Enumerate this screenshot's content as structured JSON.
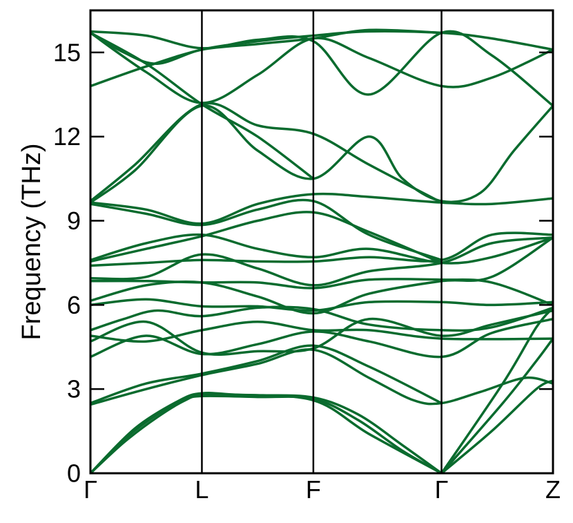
{
  "chart_data": {
    "type": "line",
    "title": "",
    "xlabel": "",
    "ylabel": "Frequency (THz)",
    "ylim": [
      0,
      16.5
    ],
    "yticks": [
      0,
      3,
      6,
      9,
      12,
      15
    ],
    "x_points": [
      {
        "label": "Γ",
        "pos": 0
      },
      {
        "label": "L",
        "pos": 1
      },
      {
        "label": "F",
        "pos": 2
      },
      {
        "label": "Γ",
        "pos": 3.15
      },
      {
        "label": "Z",
        "pos": 4.15
      }
    ],
    "grid": false,
    "line_color": "#0a6b2e",
    "series": [
      {
        "points": [
          [
            0,
            0
          ],
          [
            0.3,
            1.1
          ],
          [
            0.6,
            2.0
          ],
          [
            0.85,
            2.6
          ],
          [
            1,
            2.75
          ],
          [
            1.5,
            2.72
          ],
          [
            2,
            2.65
          ],
          [
            2.4,
            1.9
          ],
          [
            2.8,
            0.8
          ],
          [
            3.15,
            0
          ]
        ]
      },
      {
        "points": [
          [
            0,
            0
          ],
          [
            0.3,
            1.2
          ],
          [
            0.6,
            2.1
          ],
          [
            0.85,
            2.65
          ],
          [
            1,
            2.8
          ],
          [
            1.5,
            2.78
          ],
          [
            2,
            2.7
          ],
          [
            2.4,
            2.1
          ],
          [
            2.8,
            1.0
          ],
          [
            3.15,
            0
          ]
        ]
      },
      {
        "points": [
          [
            0,
            0
          ],
          [
            0.4,
            1.6
          ],
          [
            0.8,
            2.6
          ],
          [
            1,
            2.85
          ],
          [
            1.3,
            2.8
          ],
          [
            2,
            2.6
          ],
          [
            2.5,
            1.4
          ],
          [
            3.15,
            0
          ]
        ]
      },
      {
        "points": [
          [
            0,
            2.45
          ],
          [
            0.5,
            3.0
          ],
          [
            1,
            3.5
          ],
          [
            1.5,
            3.9
          ],
          [
            2,
            4.4
          ],
          [
            2.5,
            3.4
          ],
          [
            2.9,
            2.6
          ],
          [
            3.15,
            2.5
          ],
          [
            3.5,
            2.9
          ],
          [
            3.9,
            3.4
          ],
          [
            4.15,
            3.2
          ]
        ]
      },
      {
        "points": [
          [
            0,
            2.5
          ],
          [
            0.5,
            3.2
          ],
          [
            1,
            3.55
          ],
          [
            1.5,
            4.0
          ],
          [
            2,
            4.55
          ],
          [
            2.5,
            3.8
          ],
          [
            3.15,
            2.5
          ]
        ]
      },
      {
        "points": [
          [
            3.15,
            0
          ],
          [
            3.6,
            1.5
          ],
          [
            4.0,
            3.0
          ],
          [
            4.15,
            3.3
          ]
        ]
      },
      {
        "points": [
          [
            3.15,
            0
          ],
          [
            3.7,
            2.5
          ],
          [
            4.0,
            4.0
          ],
          [
            4.15,
            4.8
          ]
        ]
      },
      {
        "points": [
          [
            3.15,
            0
          ],
          [
            3.7,
            3.2
          ],
          [
            4.0,
            5.2
          ],
          [
            4.15,
            5.9
          ]
        ]
      },
      {
        "points": [
          [
            0,
            4.15
          ],
          [
            0.5,
            4.9
          ],
          [
            1,
            4.25
          ],
          [
            1.5,
            4.6
          ],
          [
            2,
            5.05
          ],
          [
            2.5,
            4.7
          ],
          [
            3.15,
            4.15
          ],
          [
            3.6,
            5.0
          ],
          [
            4.15,
            5.5
          ]
        ]
      },
      {
        "points": [
          [
            0,
            4.7
          ],
          [
            0.5,
            5.4
          ],
          [
            1,
            4.3
          ],
          [
            1.5,
            4.35
          ],
          [
            2,
            4.45
          ],
          [
            2.5,
            5.5
          ],
          [
            3.15,
            4.9
          ],
          [
            3.6,
            5.3
          ],
          [
            4.15,
            5.8
          ]
        ]
      },
      {
        "points": [
          [
            0,
            4.9
          ],
          [
            0.5,
            4.7
          ],
          [
            1,
            5.1
          ],
          [
            1.5,
            5.4
          ],
          [
            2,
            5.1
          ],
          [
            2.5,
            5.1
          ],
          [
            3.15,
            4.8
          ],
          [
            4.15,
            4.8
          ]
        ]
      },
      {
        "points": [
          [
            0,
            5.1
          ],
          [
            0.3,
            5.5
          ],
          [
            0.6,
            5.8
          ],
          [
            1,
            5.6
          ],
          [
            1.5,
            5.9
          ],
          [
            2,
            5.85
          ],
          [
            2.5,
            5.3
          ],
          [
            3.15,
            5.1
          ],
          [
            3.6,
            5.2
          ],
          [
            4.15,
            5.9
          ]
        ]
      },
      {
        "points": [
          [
            0,
            6.0
          ],
          [
            0.5,
            6.2
          ],
          [
            1,
            5.95
          ],
          [
            1.5,
            5.95
          ],
          [
            2,
            5.8
          ],
          [
            2.5,
            6.1
          ],
          [
            3.15,
            6.1
          ],
          [
            3.6,
            6.0
          ],
          [
            4.15,
            6.1
          ]
        ]
      },
      {
        "points": [
          [
            0,
            6.15
          ],
          [
            0.5,
            6.7
          ],
          [
            1,
            6.8
          ],
          [
            1.5,
            6.3
          ],
          [
            2,
            5.7
          ],
          [
            2.5,
            6.4
          ],
          [
            3.15,
            6.85
          ],
          [
            3.6,
            7.0
          ],
          [
            4.15,
            8.4
          ]
        ]
      },
      {
        "points": [
          [
            0,
            6.85
          ],
          [
            0.5,
            6.85
          ],
          [
            1,
            6.8
          ],
          [
            1.5,
            6.8
          ],
          [
            2,
            6.6
          ],
          [
            2.5,
            6.9
          ],
          [
            3.15,
            6.9
          ],
          [
            3.6,
            6.8
          ],
          [
            4.15,
            6.0
          ]
        ]
      },
      {
        "points": [
          [
            0,
            6.95
          ],
          [
            0.5,
            7.0
          ],
          [
            1,
            7.8
          ],
          [
            1.5,
            7.3
          ],
          [
            2,
            6.7
          ],
          [
            2.5,
            7.2
          ],
          [
            3.15,
            7.5
          ],
          [
            3.6,
            8.2
          ],
          [
            4.15,
            8.4
          ]
        ]
      },
      {
        "points": [
          [
            0,
            7.4
          ],
          [
            0.5,
            7.5
          ],
          [
            1,
            7.6
          ],
          [
            1.5,
            7.55
          ],
          [
            2,
            7.55
          ],
          [
            2.5,
            7.7
          ],
          [
            3.15,
            7.6
          ],
          [
            3.6,
            8.5
          ],
          [
            4.15,
            8.5
          ]
        ]
      },
      {
        "points": [
          [
            0,
            7.6
          ],
          [
            0.5,
            8.2
          ],
          [
            1,
            8.5
          ],
          [
            1.5,
            8.0
          ],
          [
            2,
            7.7
          ],
          [
            2.5,
            8.0
          ],
          [
            3.15,
            7.5
          ],
          [
            3.6,
            7.7
          ],
          [
            4.15,
            8.4
          ]
        ]
      },
      {
        "points": [
          [
            0,
            7.55
          ],
          [
            0.5,
            8.0
          ],
          [
            1,
            8.45
          ],
          [
            1.5,
            9.0
          ],
          [
            2,
            9.3
          ],
          [
            2.5,
            8.6
          ],
          [
            3.15,
            7.5
          ]
        ]
      },
      {
        "points": [
          [
            0,
            9.6
          ],
          [
            0.5,
            9.25
          ],
          [
            1,
            8.85
          ],
          [
            1.5,
            9.4
          ],
          [
            2,
            9.7
          ],
          [
            2.5,
            8.5
          ],
          [
            3.15,
            7.6
          ]
        ]
      },
      {
        "points": [
          [
            0,
            9.65
          ],
          [
            0.5,
            9.4
          ],
          [
            1,
            8.9
          ],
          [
            1.5,
            9.6
          ],
          [
            2,
            9.95
          ],
          [
            2.5,
            9.85
          ],
          [
            3.15,
            9.65
          ],
          [
            3.6,
            9.6
          ],
          [
            4.15,
            9.8
          ]
        ]
      },
      {
        "points": [
          [
            0,
            9.65
          ],
          [
            0.4,
            10.8
          ],
          [
            1,
            13.1
          ],
          [
            1.5,
            11.5
          ],
          [
            2,
            10.5
          ],
          [
            2.5,
            12.0
          ],
          [
            2.8,
            10.5
          ],
          [
            3.15,
            9.7
          ],
          [
            3.5,
            10.0
          ],
          [
            3.8,
            11.5
          ],
          [
            4.15,
            13.1
          ]
        ]
      },
      {
        "points": [
          [
            0,
            9.7
          ],
          [
            0.4,
            11.0
          ],
          [
            1,
            13.15
          ],
          [
            1.5,
            12.4
          ],
          [
            2,
            12.1
          ],
          [
            2.5,
            11.0
          ],
          [
            3.15,
            9.65
          ]
        ]
      },
      {
        "points": [
          [
            0,
            13.8
          ],
          [
            0.5,
            14.5
          ],
          [
            1,
            15.1
          ],
          [
            1.5,
            15.4
          ],
          [
            2,
            15.6
          ],
          [
            2.5,
            15.75
          ],
          [
            3.15,
            15.7
          ],
          [
            3.6,
            15.5
          ],
          [
            4.15,
            15.1
          ]
        ]
      },
      {
        "points": [
          [
            0,
            15.7
          ],
          [
            0.3,
            15.0
          ],
          [
            0.6,
            14.6
          ],
          [
            1,
            15.1
          ],
          [
            1.5,
            15.3
          ],
          [
            2,
            15.5
          ],
          [
            2.5,
            15.8
          ],
          [
            3.15,
            15.7
          ]
        ]
      },
      {
        "points": [
          [
            0,
            15.7
          ],
          [
            0.5,
            14.3
          ],
          [
            1,
            13.2
          ],
          [
            1.5,
            14.2
          ],
          [
            2,
            15.5
          ],
          [
            2.5,
            14.8
          ],
          [
            3.15,
            13.8
          ],
          [
            3.6,
            14.1
          ],
          [
            4.15,
            15.1
          ]
        ]
      },
      {
        "points": [
          [
            0,
            15.75
          ],
          [
            0.5,
            15.6
          ],
          [
            1,
            15.15
          ],
          [
            1.5,
            15.45
          ],
          [
            2,
            15.4
          ],
          [
            2.5,
            13.5
          ],
          [
            3.15,
            15.7
          ],
          [
            3.6,
            14.9
          ],
          [
            4.15,
            13.1
          ]
        ]
      },
      {
        "points": [
          [
            0,
            15.7
          ],
          [
            0.5,
            14.6
          ],
          [
            1,
            13.15
          ],
          [
            1.5,
            12.0
          ],
          [
            2,
            10.5
          ]
        ]
      }
    ]
  }
}
